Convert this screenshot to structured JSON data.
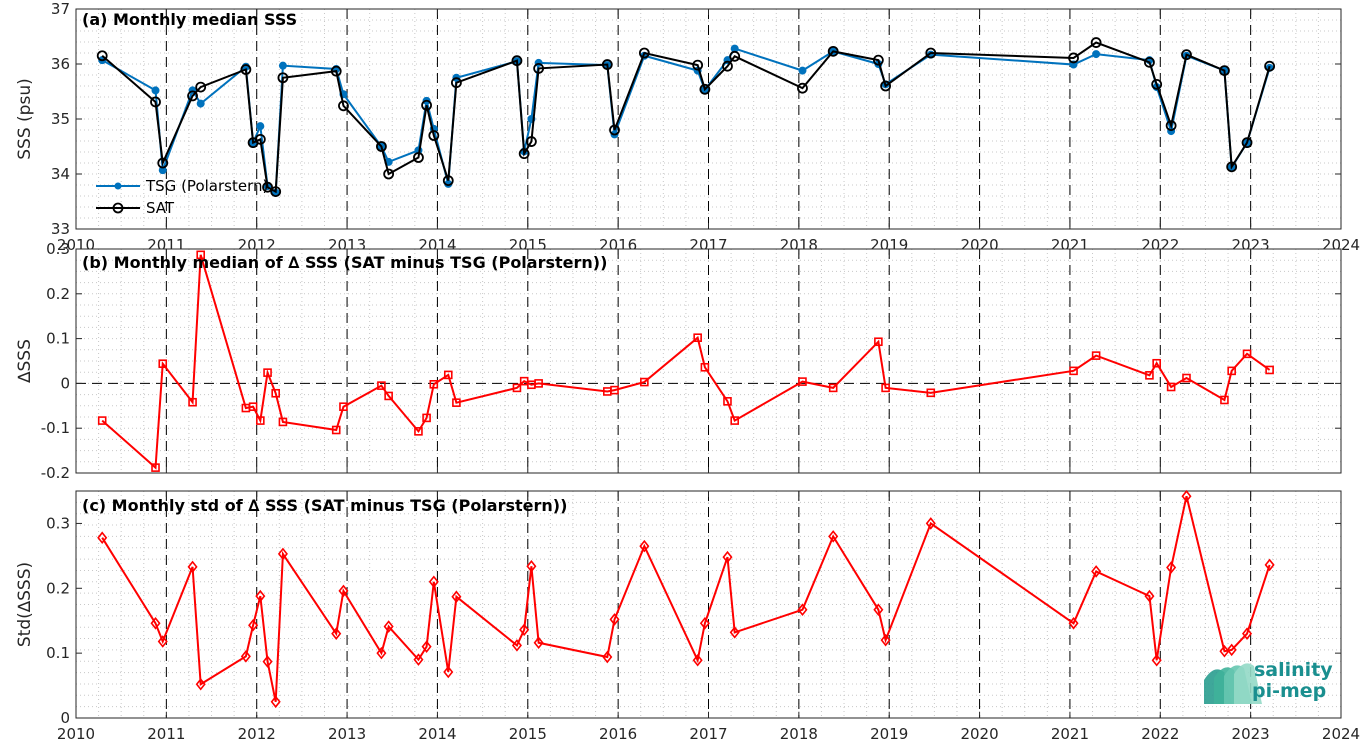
{
  "chart_data": [
    {
      "type": "line",
      "title": "(a) Monthly median SSS",
      "ylabel": "SSS (psu)",
      "ylim": [
        33,
        37
      ],
      "yticks": [
        "33",
        "34",
        "35",
        "36",
        "37"
      ],
      "xlim": [
        2010,
        2024
      ],
      "xticks": [
        "2010",
        "2011",
        "2012",
        "2013",
        "2014",
        "2015",
        "2016",
        "2017",
        "2018",
        "2019",
        "2020",
        "2021",
        "2022",
        "2023",
        "2024"
      ],
      "grid": "dotted minor",
      "legend_position": "bottom-left",
      "series": [
        {
          "name": "TSG (Polarstern)",
          "color": "#0072BD",
          "marker": "filled-dot",
          "points": [
            [
              2010.29,
              36.07
            ],
            [
              2010.88,
              35.52
            ],
            [
              2010.96,
              34.07
            ],
            [
              2011.29,
              35.52
            ],
            [
              2011.38,
              35.28
            ],
            [
              2011.88,
              35.95
            ],
            [
              2011.96,
              34.57
            ],
            [
              2012.04,
              34.87
            ],
            [
              2012.12,
              33.78
            ],
            [
              2012.21,
              33.66
            ],
            [
              2012.29,
              35.97
            ],
            [
              2012.88,
              35.91
            ],
            [
              2012.96,
              35.45
            ],
            [
              2013.38,
              34.5
            ],
            [
              2013.46,
              34.22
            ],
            [
              2013.79,
              34.43
            ],
            [
              2013.88,
              35.33
            ],
            [
              2013.96,
              34.82
            ],
            [
              2014.12,
              33.82
            ],
            [
              2014.21,
              35.75
            ],
            [
              2014.88,
              36.05
            ],
            [
              2014.96,
              34.41
            ],
            [
              2015.04,
              35.0
            ],
            [
              2015.12,
              36.02
            ],
            [
              2015.88,
              35.98
            ],
            [
              2015.96,
              34.72
            ],
            [
              2016.29,
              36.15
            ],
            [
              2016.88,
              35.88
            ],
            [
              2016.96,
              35.53
            ],
            [
              2017.21,
              36.07
            ],
            [
              2017.29,
              36.28
            ],
            [
              2018.04,
              35.88
            ],
            [
              2018.38,
              36.23
            ],
            [
              2018.88,
              36.0
            ],
            [
              2018.96,
              35.63
            ],
            [
              2019.46,
              36.17
            ],
            [
              2021.04,
              35.99
            ],
            [
              2021.29,
              36.18
            ],
            [
              2021.88,
              36.07
            ],
            [
              2021.96,
              35.58
            ],
            [
              2022.12,
              34.78
            ],
            [
              2022.29,
              36.15
            ],
            [
              2022.71,
              35.88
            ],
            [
              2022.79,
              34.12
            ],
            [
              2022.96,
              34.57
            ],
            [
              2023.21,
              35.93
            ]
          ]
        },
        {
          "name": "SAT",
          "color": "#000000",
          "marker": "open-circle",
          "points": [
            [
              2010.29,
              36.15
            ],
            [
              2010.88,
              35.31
            ],
            [
              2010.96,
              34.2
            ],
            [
              2011.29,
              35.42
            ],
            [
              2011.38,
              35.58
            ],
            [
              2011.88,
              35.9
            ],
            [
              2011.96,
              34.57
            ],
            [
              2012.04,
              34.63
            ],
            [
              2012.12,
              33.76
            ],
            [
              2012.21,
              33.68
            ],
            [
              2012.29,
              35.75
            ],
            [
              2012.88,
              35.87
            ],
            [
              2012.96,
              35.24
            ],
            [
              2013.38,
              34.5
            ],
            [
              2013.46,
              34.0
            ],
            [
              2013.79,
              34.3
            ],
            [
              2013.88,
              35.25
            ],
            [
              2013.96,
              34.7
            ],
            [
              2014.12,
              33.88
            ],
            [
              2014.21,
              35.66
            ],
            [
              2014.88,
              36.06
            ],
            [
              2014.96,
              34.37
            ],
            [
              2015.04,
              34.59
            ],
            [
              2015.12,
              35.92
            ],
            [
              2015.88,
              35.99
            ],
            [
              2015.96,
              34.8
            ],
            [
              2016.29,
              36.2
            ],
            [
              2016.88,
              35.98
            ],
            [
              2016.96,
              35.54
            ],
            [
              2017.21,
              35.96
            ],
            [
              2017.29,
              36.14
            ],
            [
              2018.04,
              35.56
            ],
            [
              2018.38,
              36.23
            ],
            [
              2018.88,
              36.07
            ],
            [
              2018.96,
              35.6
            ],
            [
              2019.46,
              36.2
            ],
            [
              2021.04,
              36.11
            ],
            [
              2021.29,
              36.39
            ],
            [
              2021.88,
              36.03
            ],
            [
              2021.96,
              35.63
            ],
            [
              2022.12,
              34.88
            ],
            [
              2022.29,
              36.17
            ],
            [
              2022.71,
              35.88
            ],
            [
              2022.79,
              34.13
            ],
            [
              2022.96,
              34.57
            ],
            [
              2023.21,
              35.96
            ]
          ]
        }
      ]
    },
    {
      "type": "line",
      "title": "(b) Monthly median of ∆ SSS (SAT minus TSG (Polarstern))",
      "ylabel": "∆SSS",
      "ylim": [
        -0.2,
        0.3
      ],
      "yticks": [
        "-0.2",
        "-0.1",
        "0",
        "0.1",
        "0.2",
        "0.3"
      ],
      "xlim": [
        2010,
        2024
      ],
      "zero_line": true,
      "grid": "dotted minor",
      "series": [
        {
          "color": "#FF0000",
          "marker": "open-square",
          "points": [
            [
              2010.29,
              -0.083
            ],
            [
              2010.88,
              -0.188
            ],
            [
              2010.96,
              0.044
            ],
            [
              2011.29,
              -0.042
            ],
            [
              2011.38,
              0.287
            ],
            [
              2011.88,
              -0.055
            ],
            [
              2011.96,
              -0.052
            ],
            [
              2012.04,
              -0.083
            ],
            [
              2012.12,
              0.024
            ],
            [
              2012.21,
              -0.022
            ],
            [
              2012.29,
              -0.086
            ],
            [
              2012.88,
              -0.104
            ],
            [
              2012.96,
              -0.052
            ],
            [
              2013.38,
              -0.005
            ],
            [
              2013.46,
              -0.028
            ],
            [
              2013.79,
              -0.107
            ],
            [
              2013.88,
              -0.077
            ],
            [
              2013.96,
              -0.002
            ],
            [
              2014.12,
              0.019
            ],
            [
              2014.21,
              -0.043
            ],
            [
              2014.88,
              -0.01
            ],
            [
              2014.96,
              0.005
            ],
            [
              2015.04,
              -0.003
            ],
            [
              2015.12,
              0.0
            ],
            [
              2015.88,
              -0.018
            ],
            [
              2015.96,
              -0.015
            ],
            [
              2016.29,
              0.003
            ],
            [
              2016.88,
              0.102
            ],
            [
              2016.96,
              0.036
            ],
            [
              2017.21,
              -0.04
            ],
            [
              2017.29,
              -0.083
            ],
            [
              2018.04,
              0.004
            ],
            [
              2018.38,
              -0.01
            ],
            [
              2018.88,
              0.093
            ],
            [
              2018.96,
              -0.01
            ],
            [
              2019.46,
              -0.021
            ],
            [
              2021.04,
              0.028
            ],
            [
              2021.29,
              0.062
            ],
            [
              2021.88,
              0.018
            ],
            [
              2021.96,
              0.045
            ],
            [
              2022.12,
              -0.008
            ],
            [
              2022.29,
              0.012
            ],
            [
              2022.71,
              -0.037
            ],
            [
              2022.79,
              0.028
            ],
            [
              2022.96,
              0.066
            ],
            [
              2023.21,
              0.03
            ]
          ]
        }
      ]
    },
    {
      "type": "line",
      "title": "(c) Monthly std of ∆ SSS (SAT minus TSG (Polarstern))",
      "ylabel": "Std(∆SSS)",
      "ylim": [
        0,
        0.35
      ],
      "yticks": [
        "0",
        "0.1",
        "0.2",
        "0.3"
      ],
      "xlim": [
        2010,
        2024
      ],
      "xticks": [
        "2010",
        "2011",
        "2012",
        "2013",
        "2014",
        "2015",
        "2016",
        "2017",
        "2018",
        "2019",
        "2020",
        "2021",
        "2022",
        "2023",
        "2024"
      ],
      "grid": "dotted minor",
      "series": [
        {
          "color": "#FF0000",
          "marker": "open-diamond",
          "points": [
            [
              2010.29,
              0.278
            ],
            [
              2010.88,
              0.146
            ],
            [
              2010.96,
              0.118
            ],
            [
              2011.29,
              0.233
            ],
            [
              2011.38,
              0.052
            ],
            [
              2011.88,
              0.095
            ],
            [
              2011.96,
              0.143
            ],
            [
              2012.04,
              0.188
            ],
            [
              2012.12,
              0.087
            ],
            [
              2012.21,
              0.025
            ],
            [
              2012.29,
              0.253
            ],
            [
              2012.88,
              0.13
            ],
            [
              2012.96,
              0.196
            ],
            [
              2013.38,
              0.1
            ],
            [
              2013.46,
              0.141
            ],
            [
              2013.79,
              0.09
            ],
            [
              2013.88,
              0.11
            ],
            [
              2013.96,
              0.21
            ],
            [
              2014.12,
              0.071
            ],
            [
              2014.21,
              0.187
            ],
            [
              2014.88,
              0.112
            ],
            [
              2014.96,
              0.136
            ],
            [
              2015.04,
              0.234
            ],
            [
              2015.12,
              0.116
            ],
            [
              2015.88,
              0.094
            ],
            [
              2015.96,
              0.152
            ],
            [
              2016.29,
              0.265
            ],
            [
              2016.88,
              0.089
            ],
            [
              2016.96,
              0.146
            ],
            [
              2017.21,
              0.248
            ],
            [
              2017.29,
              0.132
            ],
            [
              2018.04,
              0.167
            ],
            [
              2018.38,
              0.28
            ],
            [
              2018.88,
              0.167
            ],
            [
              2018.96,
              0.12
            ],
            [
              2019.46,
              0.3
            ],
            [
              2021.04,
              0.146
            ],
            [
              2021.29,
              0.226
            ],
            [
              2021.88,
              0.188
            ],
            [
              2021.96,
              0.089
            ],
            [
              2022.12,
              0.232
            ],
            [
              2022.29,
              0.342
            ],
            [
              2022.71,
              0.103
            ],
            [
              2022.79,
              0.105
            ],
            [
              2022.96,
              0.13
            ],
            [
              2023.21,
              0.236
            ]
          ]
        }
      ]
    }
  ],
  "logo": {
    "line1": "salinity",
    "line2": "pi-mep",
    "color": "#1a8f8f"
  }
}
